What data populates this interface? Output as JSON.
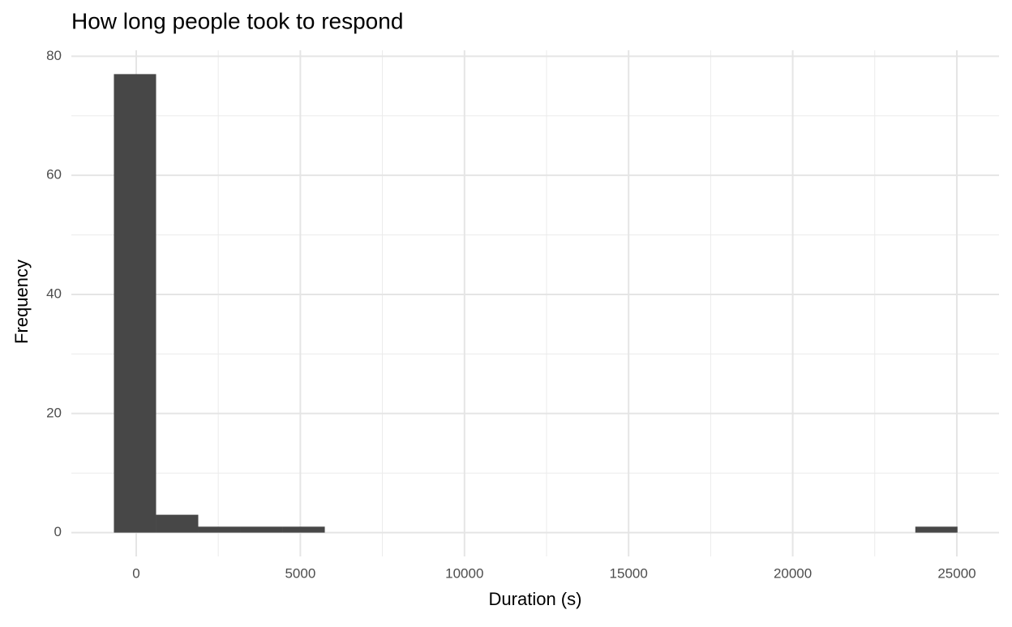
{
  "chart_data": {
    "type": "histogram",
    "title": "How long people took to respond",
    "x_label": "Duration (s)",
    "y_label": "Frequency",
    "bins": [
      -680,
      605,
      1890,
      3175,
      4460,
      5745,
      7030,
      8315,
      9600,
      10885,
      12170,
      13455,
      14740,
      16025,
      17310,
      18595,
      19880,
      21165,
      22450,
      23735,
      25020
    ],
    "values": [
      77,
      3,
      1,
      1,
      1,
      0,
      0,
      0,
      0,
      0,
      0,
      0,
      0,
      0,
      0,
      0,
      0,
      0,
      0,
      1
    ],
    "color": "#474747",
    "xlim": [
      -1976,
      26285
    ],
    "xticks": [
      0,
      5000,
      10000,
      15000,
      20000,
      25000
    ],
    "x_minor_ticks": [
      2500,
      7500,
      12500,
      17500,
      22500
    ],
    "ylim": [
      -4,
      81
    ],
    "yticks": [
      0,
      20,
      40,
      60,
      80
    ],
    "y_minor_ticks": [
      10,
      30,
      50,
      70
    ],
    "grid": true
  }
}
